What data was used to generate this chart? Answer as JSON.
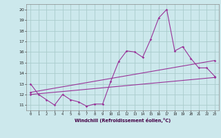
{
  "xlabel": "Windchill (Refroidissement éolien,°C)",
  "bg_color": "#cce8ec",
  "grid_color": "#aacccc",
  "line_color": "#993399",
  "x_ticks": [
    0,
    1,
    2,
    3,
    4,
    5,
    6,
    7,
    8,
    9,
    10,
    11,
    12,
    13,
    14,
    15,
    16,
    17,
    18,
    19,
    20,
    21,
    22,
    23
  ],
  "y_ticks": [
    11,
    12,
    13,
    14,
    15,
    16,
    17,
    18,
    19,
    20
  ],
  "ylim": [
    10.5,
    20.5
  ],
  "xlim": [
    -0.5,
    23.5
  ],
  "line1_x": [
    0,
    1,
    2,
    3,
    4,
    5,
    6,
    7,
    8,
    9,
    10,
    11,
    12,
    13,
    14,
    15,
    16,
    17,
    18,
    19,
    20,
    21,
    22,
    23
  ],
  "line1_y": [
    13.0,
    12.0,
    11.5,
    11.0,
    12.0,
    11.5,
    11.3,
    10.9,
    11.1,
    11.1,
    13.2,
    15.1,
    16.1,
    16.0,
    15.5,
    17.2,
    19.2,
    20.0,
    16.1,
    16.5,
    15.4,
    14.5,
    14.5,
    13.7
  ],
  "line2_x": [
    0,
    23
  ],
  "line2_y": [
    12.0,
    13.6
  ],
  "line3_x": [
    0,
    23
  ],
  "line3_y": [
    12.2,
    15.2
  ]
}
